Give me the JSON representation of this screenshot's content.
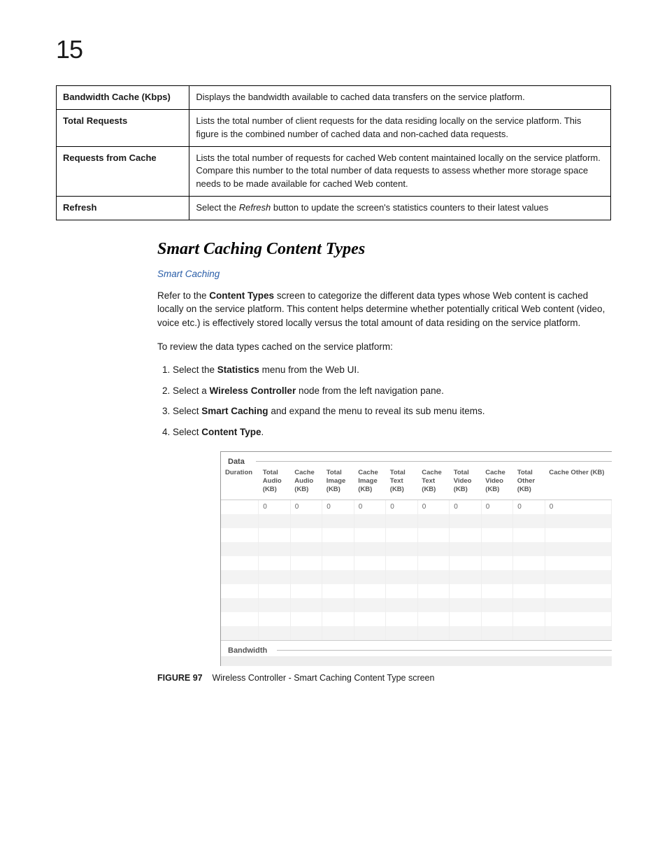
{
  "page_number": "15",
  "definitions": [
    {
      "term": "Bandwidth Cache (Kbps)",
      "desc": "Displays the bandwidth available to cached data transfers on the service platform."
    },
    {
      "term": "Total Requests",
      "desc": "Lists the total number of client requests for the data residing locally on the service platform. This figure is the combined number of cached data and non-cached data requests."
    },
    {
      "term": "Requests from Cache",
      "desc": "Lists the total number of requests for cached Web content maintained locally on the service platform. Compare this number to the total number of data requests to assess whether more storage space needs to be made available for cached Web content."
    },
    {
      "term": "Refresh",
      "desc_pre": "Select the ",
      "desc_italic": "Refresh",
      "desc_post": " button to update the screen's statistics counters to their latest values"
    }
  ],
  "section": {
    "title": "Smart Caching Content Types",
    "breadcrumb": "Smart Caching",
    "intro": {
      "pre": "Refer to the ",
      "bold": "Content Types",
      "post": " screen to categorize the different data types whose Web content is cached locally on the service platform. This content helps determine whether potentially critical Web content (video, voice etc.) is effectively stored locally versus the total amount of data residing on the service platform."
    },
    "lead": "To review the data types cached on the service platform:",
    "steps": [
      {
        "pre": "Select the ",
        "bold": "Statistics",
        "post": " menu from the Web UI."
      },
      {
        "pre": "Select a ",
        "bold": "Wireless Controller",
        "post": " node from the left navigation pane."
      },
      {
        "pre": "Select ",
        "bold": "Smart Caching",
        "post": " and expand the menu to reveal its sub menu items."
      },
      {
        "pre": "Select ",
        "bold": "Content Type",
        "post": "."
      }
    ]
  },
  "screenshot": {
    "group1_label": "Data",
    "group2_label": "Bandwidth",
    "columns": [
      "Duration",
      "Total Audio (KB)",
      "Cache Audio (KB)",
      "Total Image (KB)",
      "Cache Image (KB)",
      "Total Text (KB)",
      "Cache Text (KB)",
      "Total Video (KB)",
      "Cache Video (KB)",
      "Total Other (KB)",
      "Cache Other (KB)"
    ],
    "data_row": [
      "",
      "0",
      "0",
      "0",
      "0",
      "0",
      "0",
      "0",
      "0",
      "0",
      "0"
    ],
    "blank_rows": 9,
    "header_color": "#555",
    "alt_row_bg": "#f3f3f3",
    "border_color": "#ccc"
  },
  "figure": {
    "label": "FIGURE 97",
    "caption": "Wireless Controller - Smart Caching Content Type screen"
  }
}
